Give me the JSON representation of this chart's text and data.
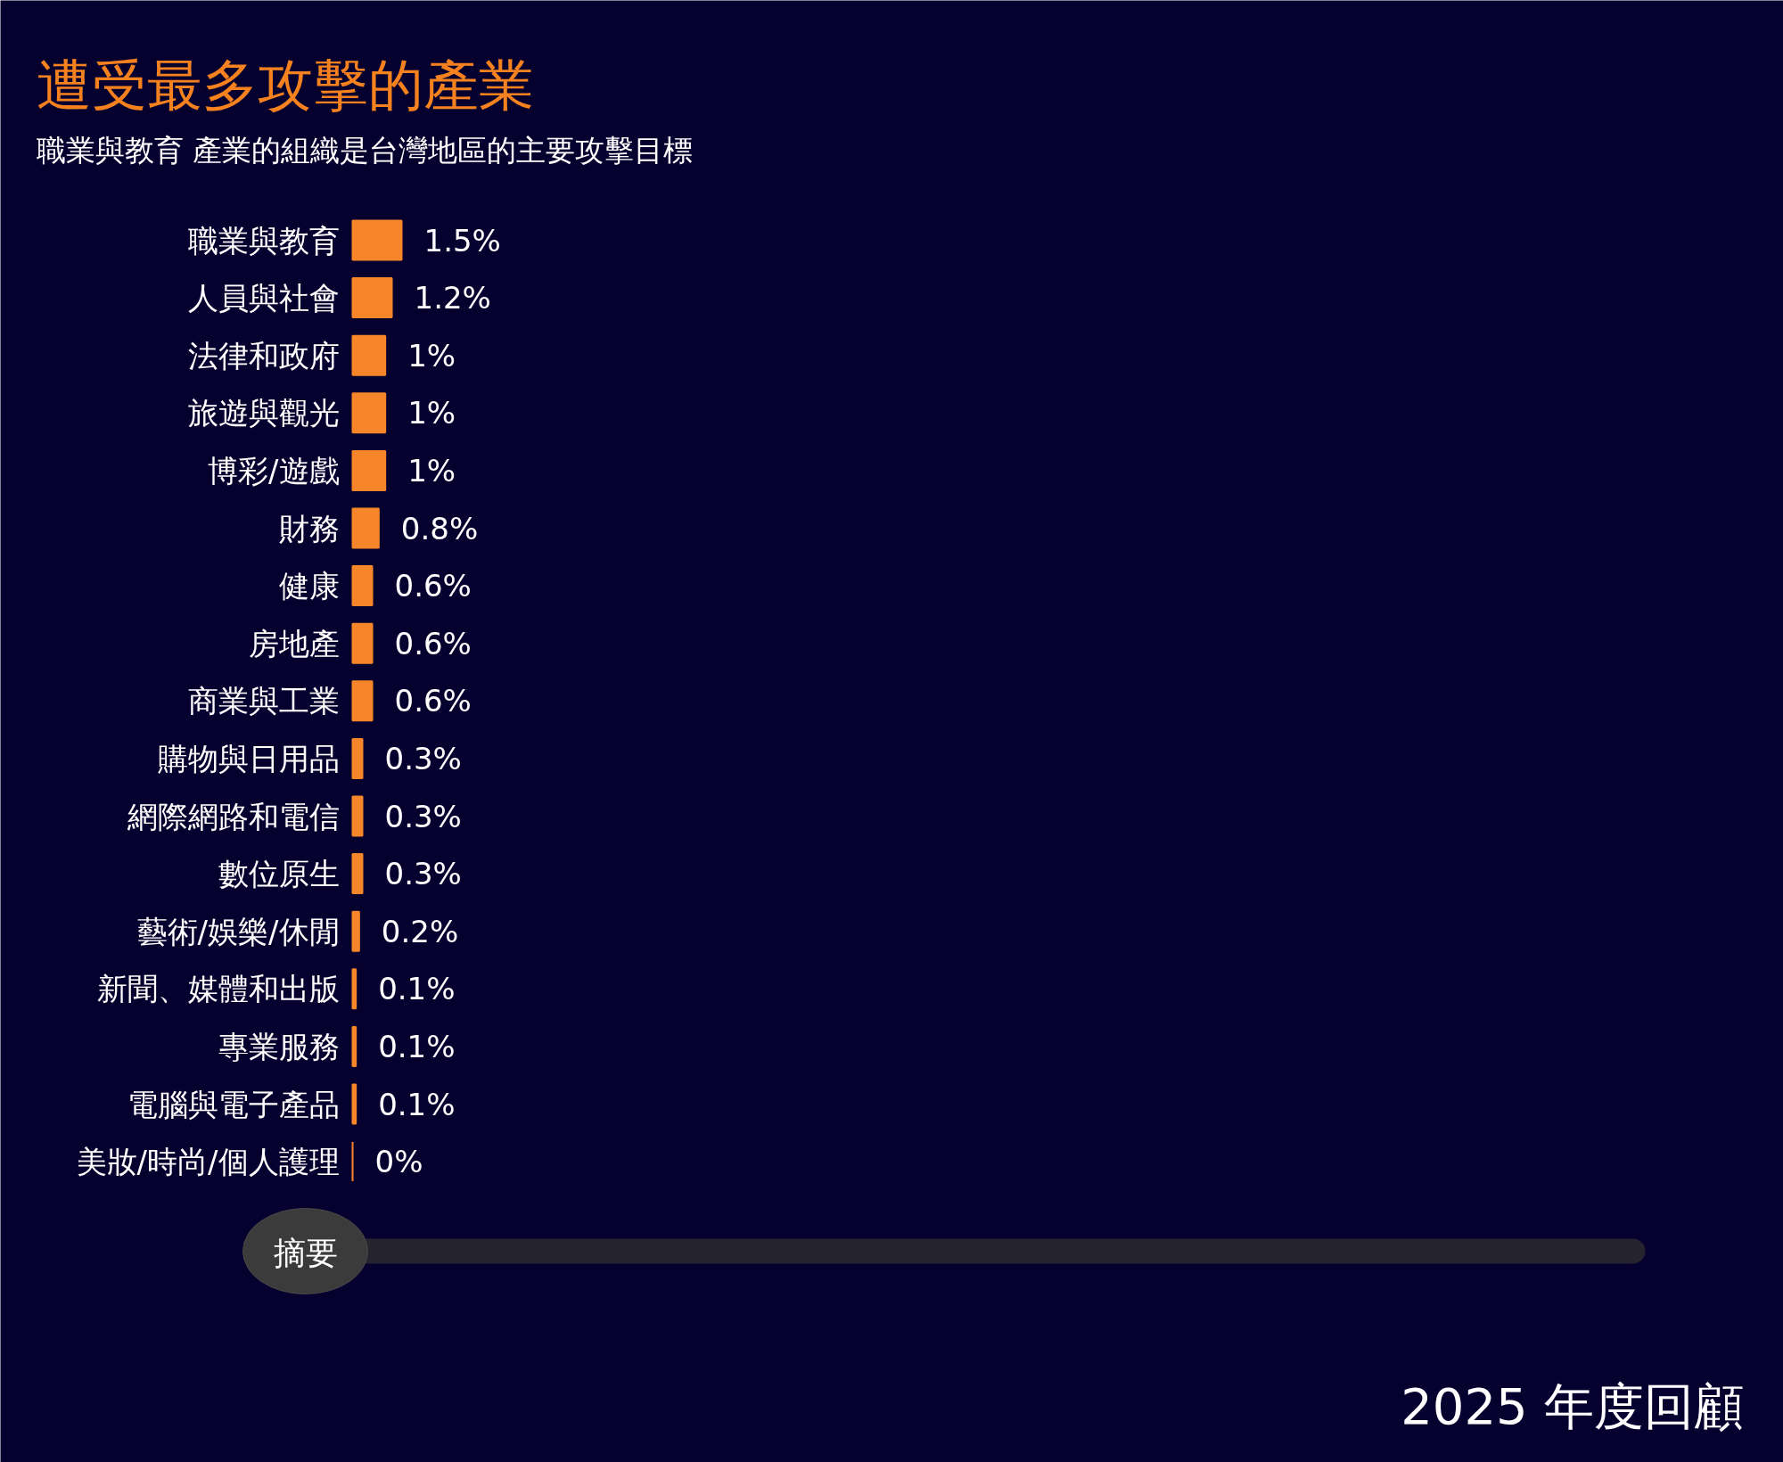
{
  "chart_data": {
    "type": "bar",
    "orientation": "horizontal",
    "title": "遭受最多攻擊的產業",
    "subtitle": "職業與教育 產業的組織是台灣地區的主要攻擊目標",
    "categories": [
      "職業與教育",
      "人員與社會",
      "法律和政府",
      "旅遊與觀光",
      "博彩/遊戲",
      "財務",
      "健康",
      "房地產",
      "商業與工業",
      "購物與日用品",
      "網際網路和電信",
      "數位原生",
      "藝術/娛樂/休閒",
      "新聞、媒體和出版",
      "專業服務",
      "電腦與電子產品",
      "美妝/時尚/個人護理"
    ],
    "values": [
      1.5,
      1.2,
      1,
      1,
      1,
      0.8,
      0.6,
      0.6,
      0.6,
      0.3,
      0.3,
      0.3,
      0.2,
      0.1,
      0.1,
      0.1,
      0
    ],
    "value_labels": [
      "1.5%",
      "1.2%",
      "1%",
      "1%",
      "1%",
      "0.8%",
      "0.6%",
      "0.6%",
      "0.6%",
      "0.3%",
      "0.3%",
      "0.3%",
      "0.2%",
      "0.1%",
      "0.1%",
      "0.1%",
      "0%"
    ],
    "color": "#f7862a",
    "annotations": [
      "摘要",
      "2025 年度回顧"
    ]
  }
}
